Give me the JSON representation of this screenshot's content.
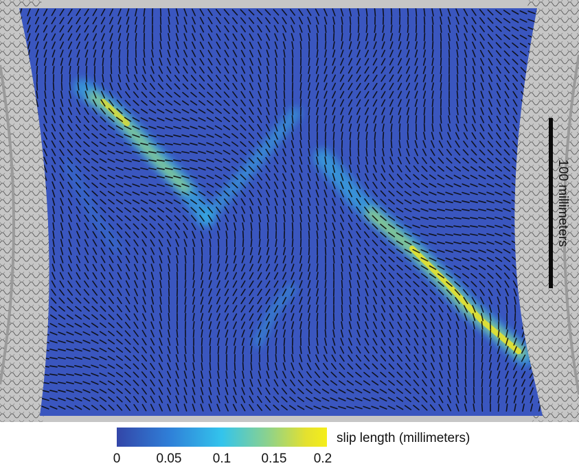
{
  "scale_bar": {
    "label": "100 millimeters",
    "length_mm": 100
  },
  "colorbar": {
    "label": "slip length (millimeters)",
    "min": 0,
    "max": 0.2,
    "ticks": [
      "0",
      "0.05",
      "0.1",
      "0.15",
      "0.2"
    ],
    "colors": [
      "#3346a8",
      "#2f7fd8",
      "#33c4ec",
      "#8dd28c",
      "#e4e12f",
      "#f5ee1a"
    ]
  },
  "colors": {
    "fabric": "#3a56bf",
    "background": "#c6c6c6",
    "arrow": "#0b0b0b"
  }
}
